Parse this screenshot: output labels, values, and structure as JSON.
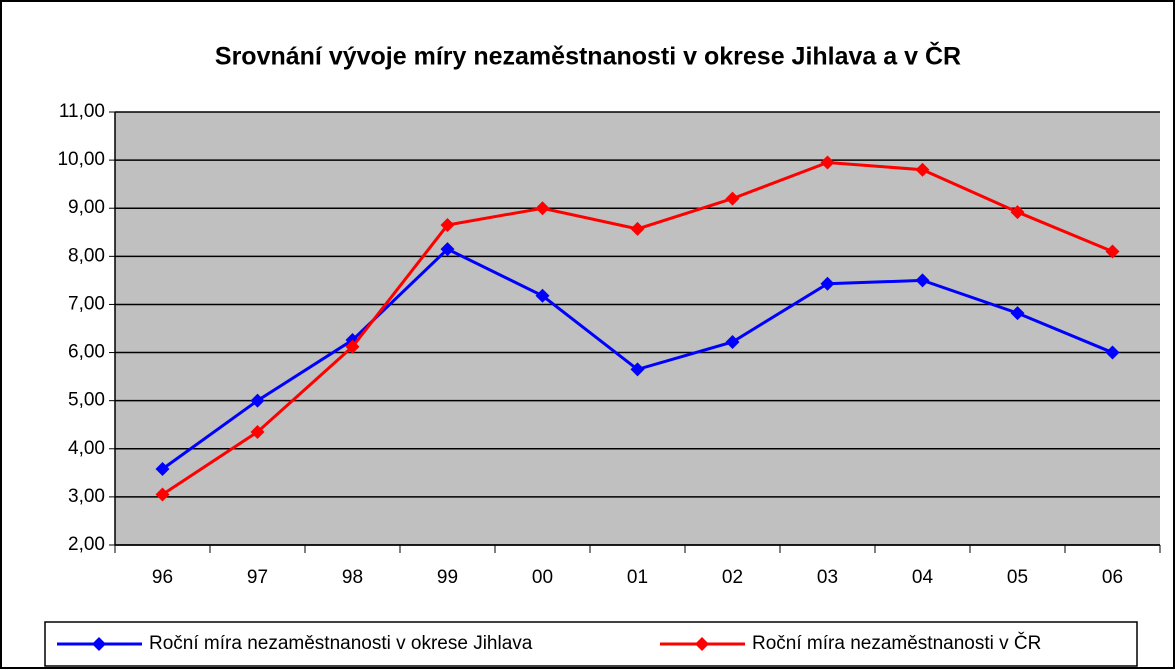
{
  "chart_data": {
    "type": "line",
    "title": "Srovnání vývoje míry nezaměstnanosti v okrese Jihlava a v ČR",
    "categories": [
      "96",
      "97",
      "98",
      "99",
      "00",
      "01",
      "02",
      "03",
      "04",
      "05",
      "06"
    ],
    "series": [
      {
        "name": "Roční míra nezaměstnanosti v okrese Jihlava",
        "color": "#0000ff",
        "values": [
          3.58,
          5.0,
          6.26,
          8.15,
          7.18,
          5.65,
          6.22,
          7.43,
          7.5,
          6.82,
          6.0
        ]
      },
      {
        "name": "Roční míra nezaměstnanosti v ČR",
        "color": "#ff0000",
        "values": [
          3.05,
          4.35,
          6.12,
          8.65,
          9.0,
          8.57,
          9.2,
          9.95,
          9.8,
          8.92,
          8.1
        ]
      }
    ],
    "ylim": [
      2,
      11
    ],
    "yticks": [
      {
        "value": 2,
        "label": "2,00"
      },
      {
        "value": 3,
        "label": "3,00"
      },
      {
        "value": 4,
        "label": "4,00"
      },
      {
        "value": 5,
        "label": "5,00"
      },
      {
        "value": 6,
        "label": "6,00"
      },
      {
        "value": 7,
        "label": "7,00"
      },
      {
        "value": 8,
        "label": "8,00"
      },
      {
        "value": 9,
        "label": "9,00"
      },
      {
        "value": 10,
        "label": "10,00"
      },
      {
        "value": 11,
        "label": "11,00"
      }
    ],
    "grid": true,
    "plot_background": "#c0c0c0",
    "legend": "bottom"
  }
}
